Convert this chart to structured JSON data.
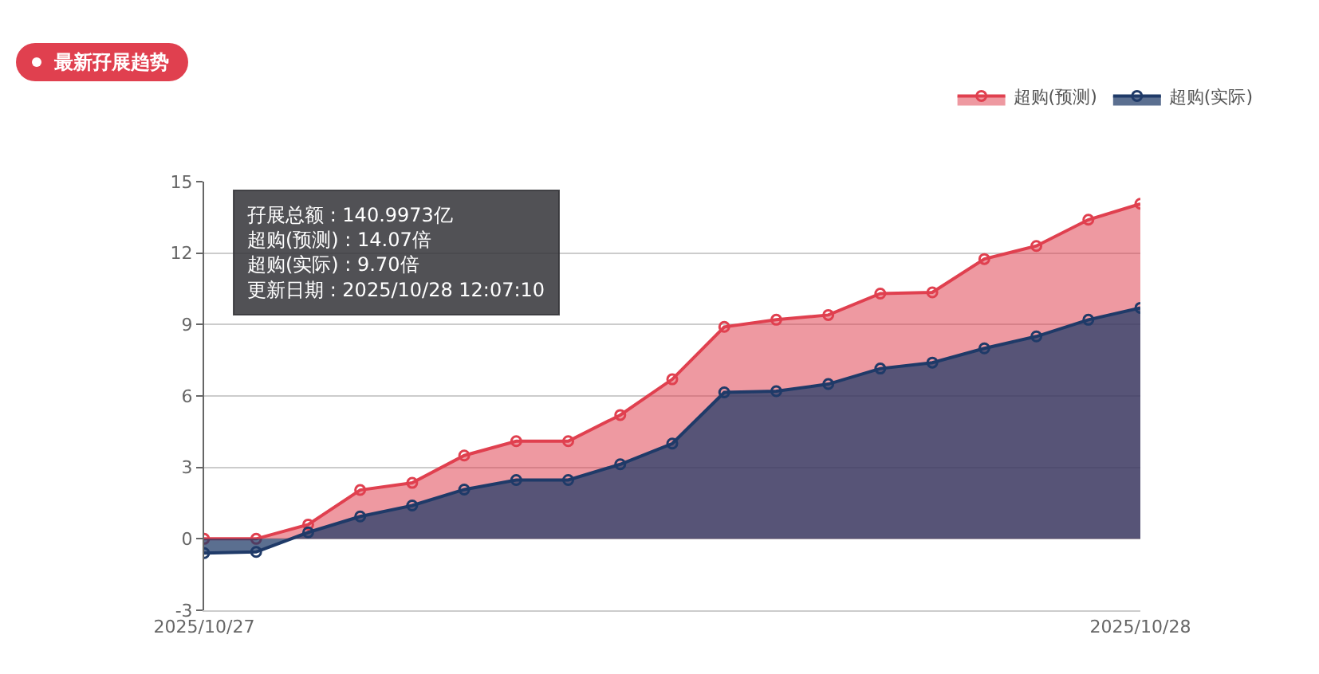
{
  "chart_data": {
    "type": "area",
    "title": "最新孖展趋势",
    "categories": [
      "2025/10/27",
      null,
      null,
      null,
      null,
      null,
      null,
      null,
      null,
      null,
      null,
      null,
      null,
      null,
      null,
      null,
      null,
      null,
      "2025/10/28"
    ],
    "series": [
      {
        "name": "超购(预测)",
        "color": "#e0404f",
        "values": [
          0,
          0,
          0.6,
          2.05,
          2.35,
          3.5,
          4.1,
          4.1,
          5.2,
          6.7,
          8.9,
          9.2,
          9.4,
          10.3,
          10.35,
          11.75,
          12.3,
          13.4,
          14.07
        ]
      },
      {
        "name": "超购(实际)",
        "color": "#1f3a68",
        "values": [
          -0.6,
          -0.55,
          0.27,
          0.94,
          1.4,
          2.07,
          2.47,
          2.47,
          3.13,
          4.0,
          6.15,
          6.2,
          6.5,
          7.15,
          7.4,
          8.0,
          8.5,
          9.2,
          9.7
        ]
      }
    ],
    "ylim": [
      -3,
      15
    ],
    "yticks": [
      -3,
      0,
      3,
      6,
      9,
      12,
      15
    ],
    "grid": "y",
    "legend": "top right",
    "marker": "circle",
    "annotations": [
      "孖展总额 : 140.9973亿",
      "超购(预测) : 14.07倍",
      "超购(实际) : 9.70倍",
      "更新日期 : 2025/10/28 12:07:10"
    ]
  }
}
